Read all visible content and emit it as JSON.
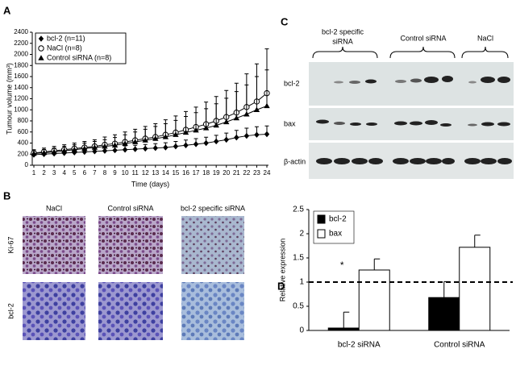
{
  "panel_labels": [
    "A",
    "B",
    "C",
    "D"
  ],
  "chart_data": [
    {
      "type": "line",
      "xlabel": "Time (days)",
      "ylabel": "Tumour volume (mm³)",
      "x": [
        1,
        2,
        3,
        4,
        5,
        6,
        7,
        8,
        9,
        10,
        11,
        12,
        13,
        14,
        15,
        16,
        17,
        18,
        19,
        20,
        21,
        22,
        23,
        24
      ],
      "xlim": [
        1,
        24
      ],
      "xticks": [
        1,
        2,
        3,
        4,
        5,
        6,
        7,
        8,
        9,
        10,
        11,
        12,
        13,
        14,
        15,
        16,
        17,
        18,
        19,
        20,
        21,
        22,
        23,
        24
      ],
      "ylim": [
        0,
        2400
      ],
      "yticks": [
        0,
        200,
        400,
        600,
        800,
        1000,
        1200,
        1400,
        1600,
        1800,
        2000,
        2200,
        2400
      ],
      "legend": "top-left",
      "series": [
        {
          "name": "bcl-2 (n=11)",
          "color": "#000000",
          "marker": "diamond",
          "values": [
            190,
            200,
            210,
            220,
            230,
            240,
            250,
            260,
            270,
            280,
            290,
            300,
            310,
            320,
            340,
            360,
            380,
            400,
            430,
            460,
            500,
            530,
            550,
            560
          ],
          "errors": [
            40,
            40,
            45,
            50,
            50,
            55,
            60,
            60,
            65,
            70,
            70,
            75,
            80,
            85,
            90,
            95,
            100,
            105,
            110,
            120,
            130,
            140,
            145,
            150
          ]
        },
        {
          "name": "NaCl (n=8)",
          "color": "#000000",
          "marker": "circle",
          "values": [
            220,
            240,
            260,
            280,
            300,
            320,
            340,
            370,
            390,
            420,
            450,
            480,
            510,
            550,
            590,
            640,
            690,
            740,
            800,
            870,
            950,
            1050,
            1150,
            1300
          ],
          "errors": [
            60,
            70,
            80,
            90,
            100,
            110,
            120,
            140,
            160,
            180,
            200,
            220,
            240,
            270,
            300,
            330,
            360,
            400,
            440,
            480,
            530,
            600,
            680,
            800
          ]
        },
        {
          "name": "Control siRNA (n=8)",
          "color": "#000000",
          "marker": "triangle",
          "values": [
            210,
            225,
            240,
            260,
            280,
            300,
            320,
            340,
            360,
            390,
            420,
            450,
            480,
            510,
            550,
            590,
            630,
            670,
            720,
            780,
            850,
            920,
            1000,
            1070
          ],
          "errors": [
            50,
            60,
            70,
            80,
            90,
            100,
            110,
            120,
            140,
            160,
            180,
            200,
            220,
            240,
            260,
            290,
            320,
            350,
            390,
            430,
            480,
            530,
            600,
            650
          ]
        }
      ]
    },
    {
      "type": "bar",
      "ylabel": "Relative expression",
      "categories": [
        "bcl-2 siRNA",
        "Control siRNA"
      ],
      "ylim": [
        0,
        2.5
      ],
      "yticks": [
        0,
        0.5,
        1,
        1.5,
        2,
        2.5
      ],
      "legend": "top-left",
      "reference_line": 1,
      "annotation": "*",
      "series": [
        {
          "name": "bcl-2",
          "color": "#000000",
          "values": [
            0.05,
            0.68
          ],
          "errors": [
            0.33,
            0.33
          ]
        },
        {
          "name": "bax",
          "color": "#ffffff",
          "values": [
            1.25,
            1.72
          ],
          "errors": [
            0.23,
            0.25
          ]
        }
      ]
    }
  ],
  "histology": {
    "columns": [
      "NaCl",
      "Control siRNA",
      "bcl-2 specific siRNA"
    ],
    "rows": [
      "Ki-67",
      "bcl-2"
    ]
  },
  "western_blot": {
    "groups": [
      [
        "bcl-2 specific",
        "siRNA"
      ],
      [
        "Control siRNA"
      ],
      [
        "NaCl"
      ]
    ],
    "rows": [
      "bcl-2",
      "bax",
      "β-actin"
    ]
  }
}
